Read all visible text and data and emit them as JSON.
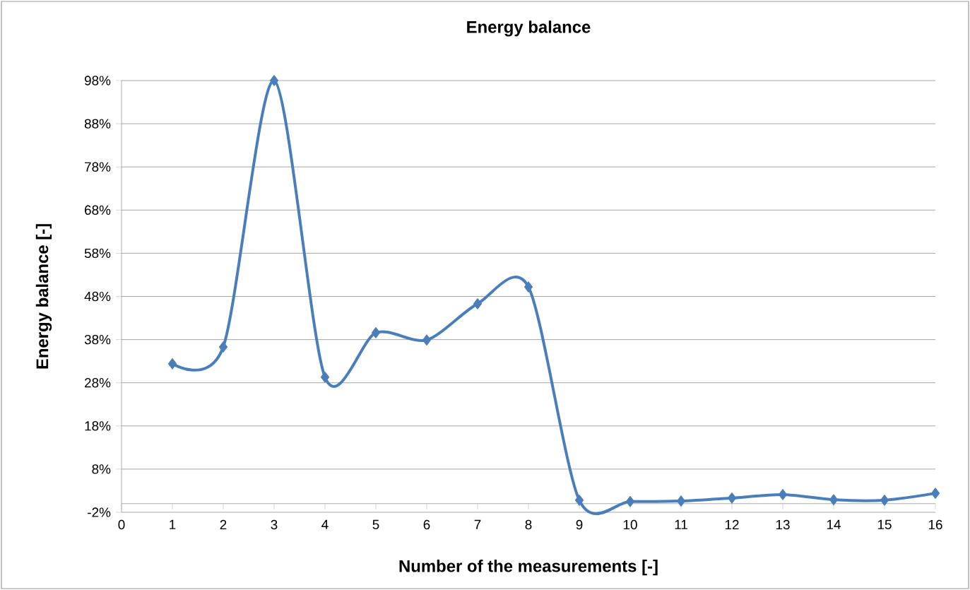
{
  "chart_data": {
    "type": "line",
    "title": "Energy balance",
    "xlabel": "Number of the measurements [-]",
    "ylabel": "Energy balance [-]",
    "x": [
      1,
      2,
      3,
      4,
      5,
      6,
      7,
      8,
      9,
      10,
      11,
      12,
      13,
      14,
      15,
      16
    ],
    "series": [
      {
        "color": "#4a7ebb",
        "values": [
          32.4,
          36.3,
          98,
          29.3,
          39.6,
          37.9,
          46.3,
          50.2,
          0.8,
          0.5,
          0.6,
          1.3,
          2.1,
          0.9,
          0.8,
          2.4
        ]
      }
    ],
    "xlim": [
      0,
      16
    ],
    "xticks": [
      0,
      1,
      2,
      3,
      4,
      5,
      6,
      7,
      8,
      9,
      10,
      11,
      12,
      13,
      14,
      15,
      16
    ],
    "ylim": [
      -2,
      98
    ],
    "yticks": [
      {
        "value": -2,
        "label": "-2%"
      },
      {
        "value": 8,
        "label": "8%"
      },
      {
        "value": 18,
        "label": "18%"
      },
      {
        "value": 28,
        "label": "28%"
      },
      {
        "value": 38,
        "label": "38%"
      },
      {
        "value": 48,
        "label": "48%"
      },
      {
        "value": 58,
        "label": "58%"
      },
      {
        "value": 68,
        "label": "68%"
      },
      {
        "value": 78,
        "label": "78%"
      },
      {
        "value": 88,
        "label": "88%"
      },
      {
        "value": 98,
        "label": "98%"
      }
    ],
    "grid": "y",
    "marker": "diamond",
    "line_style": "solid"
  }
}
